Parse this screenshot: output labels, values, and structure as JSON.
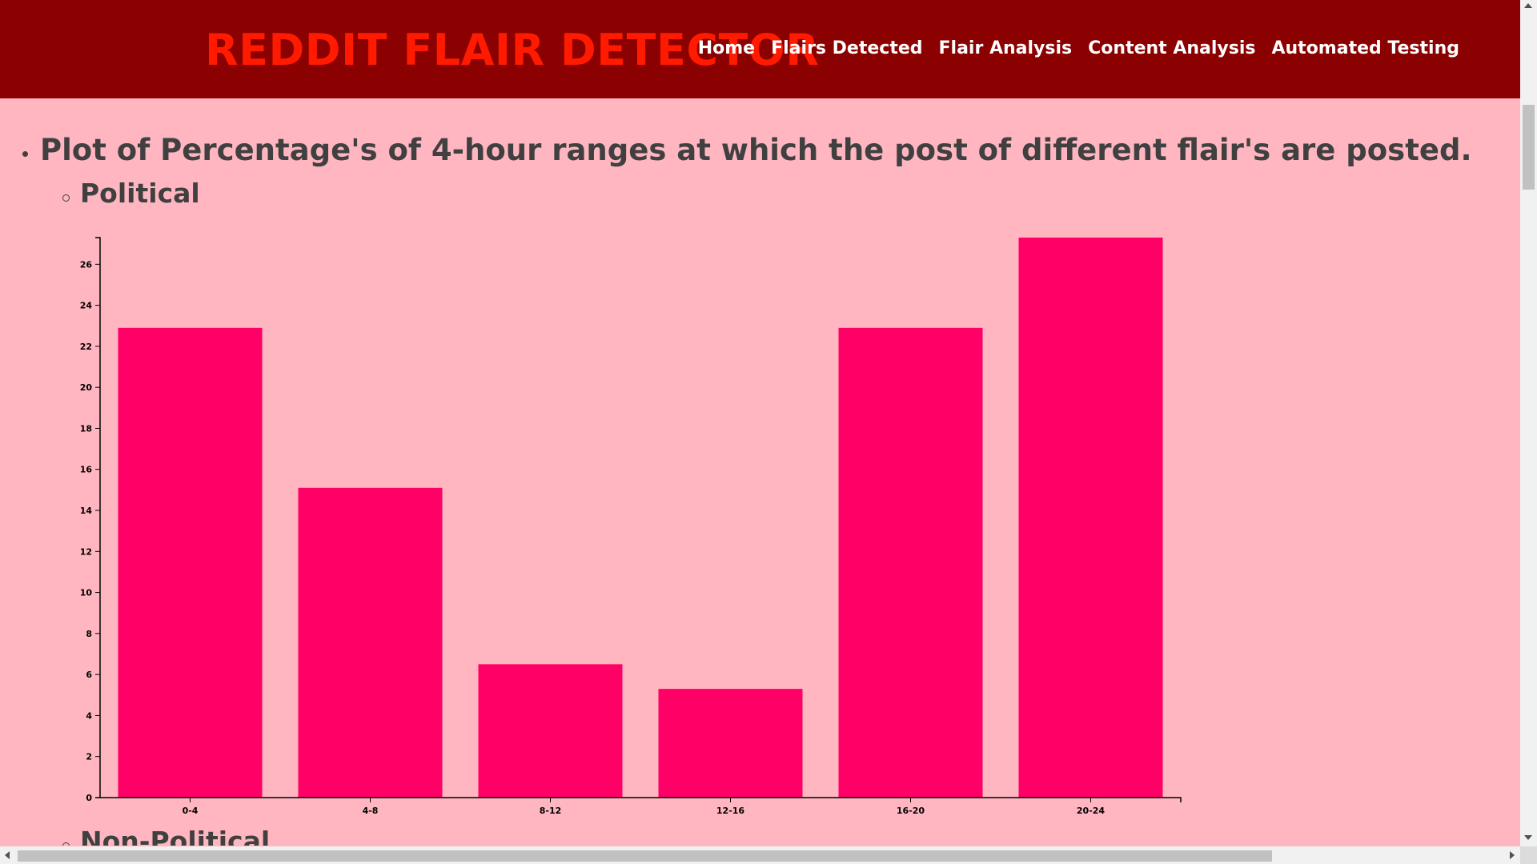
{
  "header": {
    "brand": "REDDIT FLAIR DETECTOR",
    "nav": [
      "Home",
      "Flairs Detected",
      "Flair Analysis",
      "Content Analysis",
      "Automated Testing"
    ]
  },
  "content": {
    "main_heading": "Plot of Percentage's of 4-hour ranges at which the post of different flair's are posted.",
    "subheading_1": "Political",
    "subheading_2": "Non-Political"
  },
  "colors": {
    "header_bg": "#8b0000",
    "brand": "#ff1a00",
    "page_bg": "#ffb6c1",
    "bar": "#ff0066"
  },
  "chart_data": {
    "type": "bar",
    "title": "",
    "xlabel": "",
    "ylabel": "",
    "categories": [
      "0-4",
      "4-8",
      "8-12",
      "12-16",
      "16-20",
      "20-24"
    ],
    "values": [
      22.9,
      15.1,
      6.5,
      5.3,
      22.9,
      27.3
    ],
    "ylim": [
      0,
      27.3
    ],
    "yticks": [
      0,
      2,
      4,
      6,
      8,
      10,
      12,
      14,
      16,
      18,
      20,
      22,
      24,
      26
    ],
    "grid": false,
    "legend": "none"
  }
}
